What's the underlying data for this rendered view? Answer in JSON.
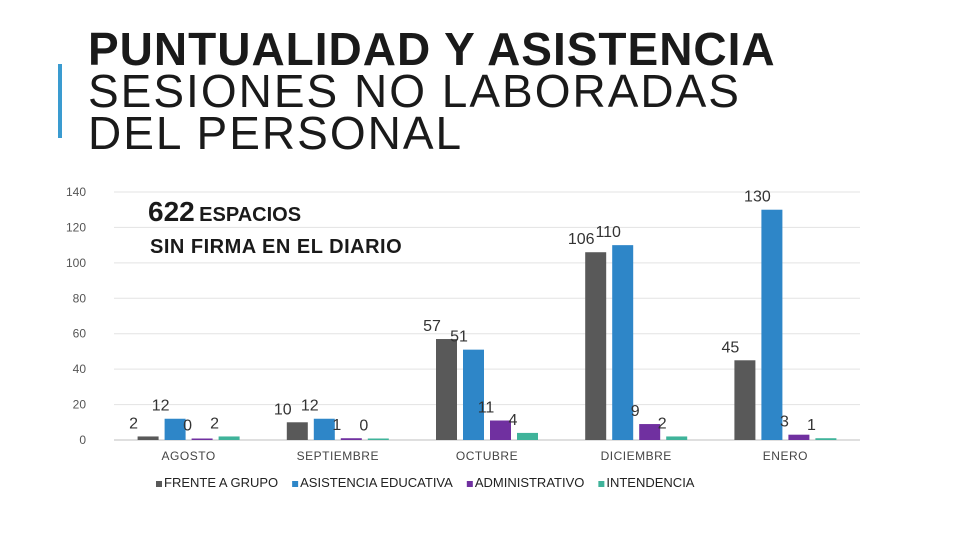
{
  "title": {
    "line1": "PUNTUALIDAD Y ASISTENCIA",
    "line2": "SESIONES NO LABORADAS",
    "line3": "DEL PERSONAL"
  },
  "annotation": {
    "number": "622",
    "word": "ESPACIOS",
    "line2": "SIN FIRMA EN EL DIARIO"
  },
  "chart_data": {
    "type": "bar",
    "categories": [
      "AGOSTO",
      "SEPTIEMBRE",
      "OCTUBRE",
      "DICIEMBRE",
      "ENERO"
    ],
    "series": [
      {
        "name": "FRENTE A GRUPO",
        "color": "#595959",
        "values": [
          2,
          10,
          57,
          106,
          45
        ]
      },
      {
        "name": "ASISTENCIA EDUCATIVA",
        "color": "#2e86c8",
        "values": [
          12,
          12,
          51,
          110,
          130
        ]
      },
      {
        "name": "ADMINISTRATIVO",
        "color": "#7030a0",
        "values": [
          0,
          1,
          11,
          9,
          3
        ]
      },
      {
        "name": "INTENDENCIA",
        "color": "#3fb39a",
        "values": [
          2,
          0,
          4,
          2,
          1
        ]
      }
    ],
    "ylim": [
      0,
      140
    ],
    "yticks": [
      0,
      20,
      40,
      60,
      80,
      100,
      120,
      140
    ],
    "grid": true,
    "legend": "bottom"
  }
}
